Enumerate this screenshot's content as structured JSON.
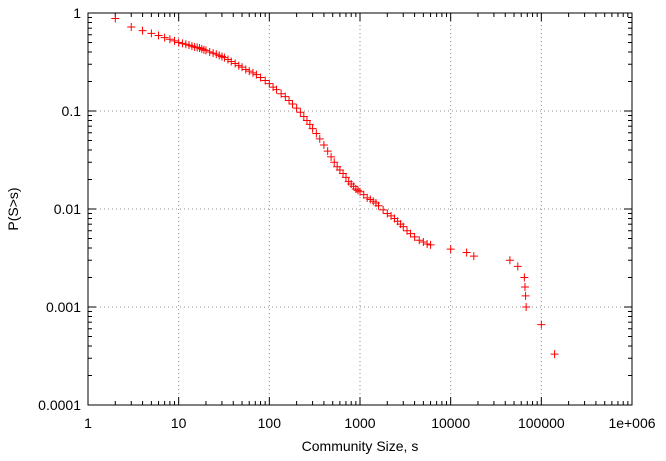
{
  "chart_data": {
    "type": "scatter",
    "xlabel": "Community Size, s",
    "ylabel": "P(S>s)",
    "x_scale": "log",
    "y_scale": "log",
    "xlim": [
      1,
      1000000
    ],
    "ylim": [
      0.0001,
      1
    ],
    "grid": true,
    "marker": "plus",
    "marker_color": "#ff0000",
    "x_tick_labels": [
      "1",
      "10",
      "100",
      "1000",
      "10000",
      "100000",
      "1e+006"
    ],
    "y_tick_labels": [
      "0.0001",
      "0.001",
      "0.01",
      "0.1",
      "1"
    ],
    "series": [
      {
        "points": [
          [
            2,
            0.88
          ],
          [
            3,
            0.72
          ],
          [
            4,
            0.66
          ],
          [
            5,
            0.62
          ],
          [
            6,
            0.59
          ],
          [
            7,
            0.56
          ],
          [
            8,
            0.54
          ],
          [
            9,
            0.52
          ],
          [
            10,
            0.5
          ],
          [
            11,
            0.49
          ],
          [
            12,
            0.48
          ],
          [
            13,
            0.47
          ],
          [
            14,
            0.46
          ],
          [
            15,
            0.45
          ],
          [
            16,
            0.445
          ],
          [
            17,
            0.44
          ],
          [
            18,
            0.43
          ],
          [
            19,
            0.42
          ],
          [
            20,
            0.415
          ],
          [
            22,
            0.4
          ],
          [
            24,
            0.39
          ],
          [
            26,
            0.38
          ],
          [
            28,
            0.37
          ],
          [
            30,
            0.36
          ],
          [
            32,
            0.35
          ],
          [
            35,
            0.335
          ],
          [
            38,
            0.32
          ],
          [
            42,
            0.305
          ],
          [
            46,
            0.29
          ],
          [
            50,
            0.28
          ],
          [
            55,
            0.265
          ],
          [
            60,
            0.255
          ],
          [
            66,
            0.245
          ],
          [
            72,
            0.235
          ],
          [
            80,
            0.22
          ],
          [
            90,
            0.205
          ],
          [
            100,
            0.19
          ],
          [
            110,
            0.175
          ],
          [
            120,
            0.165
          ],
          [
            135,
            0.15
          ],
          [
            150,
            0.14
          ],
          [
            165,
            0.128
          ],
          [
            180,
            0.118
          ],
          [
            200,
            0.107
          ],
          [
            220,
            0.097
          ],
          [
            240,
            0.088
          ],
          [
            260,
            0.08
          ],
          [
            280,
            0.073
          ],
          [
            300,
            0.066
          ],
          [
            330,
            0.059
          ],
          [
            360,
            0.052
          ],
          [
            400,
            0.045
          ],
          [
            440,
            0.039
          ],
          [
            480,
            0.034
          ],
          [
            520,
            0.03
          ],
          [
            560,
            0.027
          ],
          [
            600,
            0.025
          ],
          [
            650,
            0.023
          ],
          [
            700,
            0.021
          ],
          [
            750,
            0.019
          ],
          [
            800,
            0.018
          ],
          [
            850,
            0.017
          ],
          [
            900,
            0.016
          ],
          [
            950,
            0.0155
          ],
          [
            1000,
            0.015
          ],
          [
            1100,
            0.014
          ],
          [
            1200,
            0.013
          ],
          [
            1300,
            0.0125
          ],
          [
            1400,
            0.012
          ],
          [
            1500,
            0.0115
          ],
          [
            1600,
            0.0108
          ],
          [
            1800,
            0.0098
          ],
          [
            2000,
            0.009
          ],
          [
            2200,
            0.0085
          ],
          [
            2400,
            0.008
          ],
          [
            2600,
            0.0075
          ],
          [
            2800,
            0.007
          ],
          [
            3000,
            0.0066
          ],
          [
            3300,
            0.006
          ],
          [
            3600,
            0.0056
          ],
          [
            4000,
            0.0052
          ],
          [
            4500,
            0.0048
          ],
          [
            5000,
            0.0046
          ],
          [
            5500,
            0.0044
          ],
          [
            6000,
            0.0043
          ],
          [
            10000,
            0.0039
          ],
          [
            15000,
            0.0036
          ],
          [
            18000,
            0.0033
          ],
          [
            45000,
            0.003
          ],
          [
            55000,
            0.0026
          ],
          [
            65000,
            0.002
          ],
          [
            66000,
            0.0016
          ],
          [
            67000,
            0.0013
          ],
          [
            68000,
            0.001
          ],
          [
            100000,
            0.00066
          ],
          [
            140000,
            0.00033
          ]
        ]
      }
    ]
  }
}
